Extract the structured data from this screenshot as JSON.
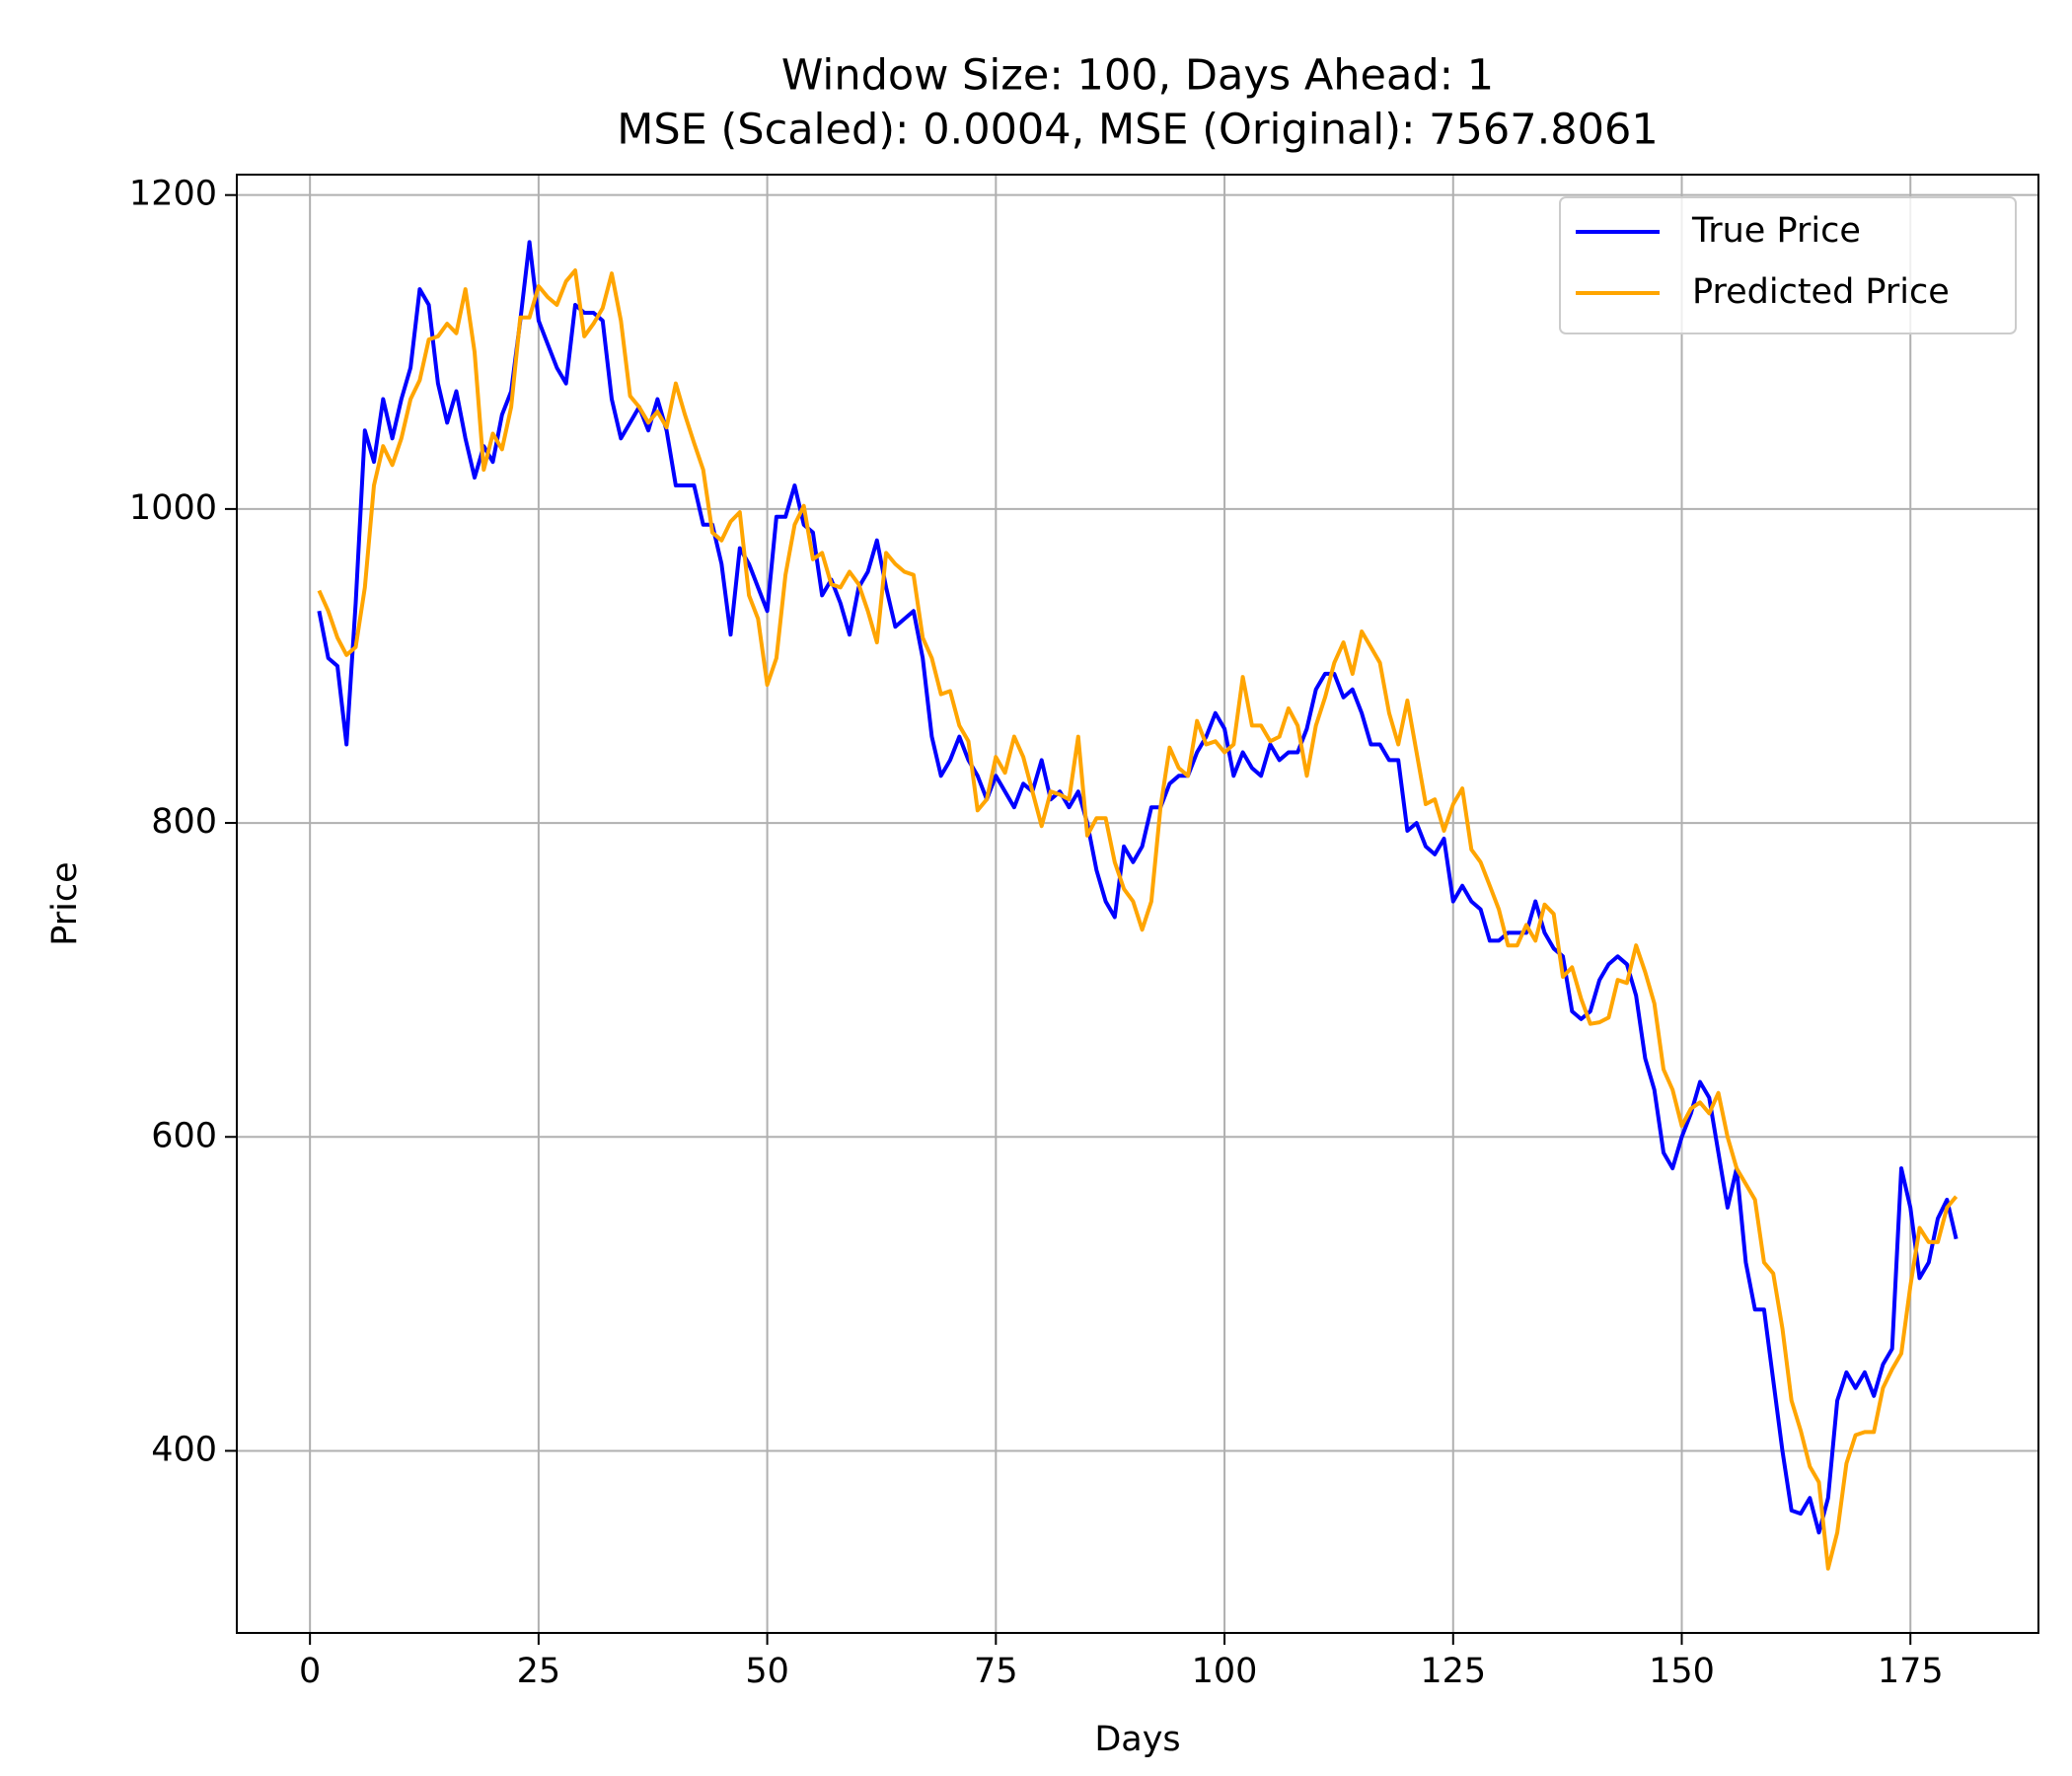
{
  "chart_data": {
    "type": "line",
    "title": "Window Size: 100, Days Ahead: 1",
    "subtitle": "MSE (Scaled): 0.0004, MSE (Original): 7567.8061",
    "x_label": "Days",
    "y_label": "Price",
    "x": [
      1,
      2,
      3,
      4,
      5,
      6,
      7,
      8,
      9,
      10,
      11,
      12,
      13,
      14,
      15,
      16,
      17,
      18,
      19,
      20,
      21,
      22,
      23,
      24,
      25,
      26,
      27,
      28,
      29,
      30,
      31,
      32,
      33,
      34,
      35,
      36,
      37,
      38,
      39,
      40,
      41,
      42,
      43,
      44,
      45,
      46,
      47,
      48,
      49,
      50,
      51,
      52,
      53,
      54,
      55,
      56,
      57,
      58,
      59,
      60,
      61,
      62,
      63,
      64,
      65,
      66,
      67,
      68,
      69,
      70,
      71,
      72,
      73,
      74,
      75,
      76,
      77,
      78,
      79,
      80,
      81,
      82,
      83,
      84,
      85,
      86,
      87,
      88,
      89,
      90,
      91,
      92,
      93,
      94,
      95,
      96,
      97,
      98,
      99,
      100,
      101,
      102,
      103,
      104,
      105,
      106,
      107,
      108,
      109,
      110,
      111,
      112,
      113,
      114,
      115,
      116,
      117,
      118,
      119,
      120,
      121,
      122,
      123,
      124,
      125,
      126,
      127,
      128,
      129,
      130,
      131,
      132,
      133,
      134,
      135,
      136,
      137,
      138,
      139,
      140,
      141,
      142,
      143,
      144,
      145,
      146,
      147,
      148,
      149,
      150,
      151,
      152,
      153,
      154,
      155,
      156,
      157,
      158,
      159,
      160,
      161,
      162,
      163,
      164,
      165,
      166,
      167,
      168,
      169,
      170,
      171,
      172,
      173,
      174,
      175,
      176,
      177,
      178,
      179,
      180
    ],
    "series": [
      {
        "name": "True Price",
        "color": "#0000ff",
        "values": [
          935,
          905,
          900,
          850,
          940,
          1050,
          1030,
          1070,
          1045,
          1070,
          1090,
          1140,
          1130,
          1080,
          1055,
          1075,
          1045,
          1020,
          1040,
          1030,
          1060,
          1075,
          1120,
          1170,
          1120,
          1105,
          1090,
          1080,
          1130,
          1125,
          1125,
          1120,
          1070,
          1045,
          1055,
          1065,
          1050,
          1070,
          1050,
          1015,
          1015,
          1015,
          990,
          990,
          965,
          920,
          975,
          965,
          950,
          935,
          995,
          995,
          1015,
          990,
          985,
          945,
          955,
          940,
          920,
          950,
          960,
          980,
          950,
          925,
          930,
          935,
          905,
          855,
          830,
          840,
          855,
          840,
          830,
          815,
          830,
          820,
          810,
          825,
          820,
          840,
          815,
          820,
          810,
          820,
          800,
          770,
          750,
          740,
          785,
          775,
          785,
          810,
          810,
          825,
          830,
          830,
          845,
          855,
          870,
          860,
          830,
          845,
          835,
          830,
          850,
          840,
          845,
          845,
          860,
          885,
          895,
          895,
          880,
          885,
          870,
          850,
          850,
          840,
          840,
          795,
          800,
          785,
          780,
          790,
          750,
          760,
          750,
          745,
          725,
          725,
          730,
          730,
          730,
          750,
          730,
          720,
          715,
          680,
          675,
          680,
          700,
          710,
          715,
          710,
          690,
          650,
          630,
          590,
          580,
          600,
          615,
          635,
          625,
          590,
          555,
          580,
          520,
          490,
          490,
          445,
          400,
          362,
          360,
          370,
          348,
          370,
          432,
          450,
          440,
          450,
          435,
          455,
          465,
          580,
          555,
          510,
          520,
          548,
          560,
          535
        ]
      },
      {
        "name": "Predicted Price",
        "color": "#ffa500",
        "values": [
          948,
          935,
          918,
          907,
          912,
          950,
          1015,
          1040,
          1028,
          1045,
          1070,
          1082,
          1108,
          1110,
          1118,
          1112,
          1140,
          1100,
          1025,
          1048,
          1038,
          1065,
          1122,
          1122,
          1142,
          1135,
          1130,
          1145,
          1152,
          1110,
          1118,
          1128,
          1150,
          1120,
          1072,
          1065,
          1055,
          1062,
          1052,
          1080,
          1060,
          1042,
          1025,
          985,
          980,
          992,
          998,
          945,
          930,
          888,
          905,
          958,
          990,
          1002,
          968,
          972,
          952,
          950,
          960,
          952,
          935,
          915,
          972,
          965,
          960,
          958,
          918,
          905,
          882,
          884,
          862,
          852,
          808,
          815,
          842,
          832,
          855,
          842,
          820,
          798,
          820,
          818,
          815,
          855,
          792,
          803,
          803,
          775,
          758,
          750,
          732,
          750,
          810,
          848,
          835,
          830,
          865,
          850,
          852,
          845,
          850,
          893,
          862,
          862,
          852,
          855,
          873,
          862,
          830,
          862,
          880,
          902,
          915,
          895,
          922,
          912,
          902,
          870,
          850,
          878,
          845,
          812,
          815,
          795,
          812,
          822,
          783,
          775,
          760,
          745,
          722,
          722,
          735,
          725,
          748,
          742,
          702,
          708,
          688,
          672,
          673,
          676,
          700,
          698,
          722,
          705,
          685,
          643,
          630,
          607,
          618,
          622,
          615,
          628,
          600,
          580,
          570,
          560,
          520,
          513,
          478,
          432,
          413,
          390,
          380,
          325,
          348,
          392,
          410,
          412,
          412,
          440,
          452,
          462,
          505,
          542,
          533,
          533,
          555,
          562
        ]
      }
    ],
    "xlim": [
      -8,
      189
    ],
    "ylim": [
      284,
      1213
    ],
    "xticks": [
      0,
      25,
      50,
      75,
      100,
      125,
      150,
      175
    ],
    "yticks": [
      400,
      600,
      800,
      1000,
      1200
    ],
    "grid": true,
    "legend": "upper right"
  }
}
